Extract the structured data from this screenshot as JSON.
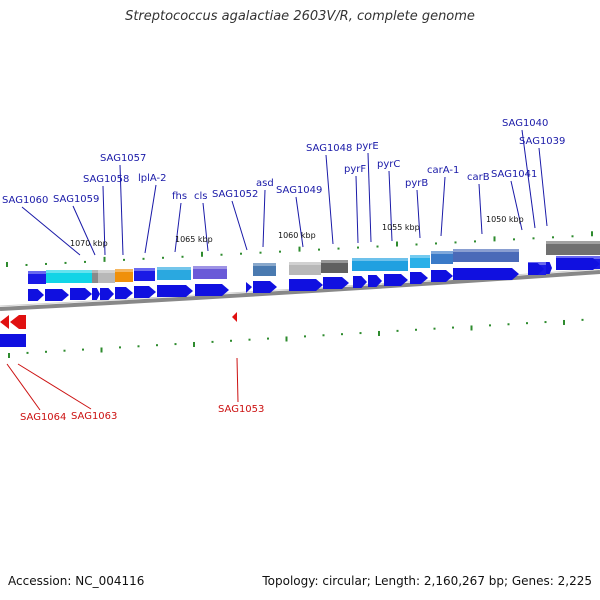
{
  "title": "Streptococcus agalactiae 2603V/R, complete genome",
  "footer": {
    "accession": "Accession: NC_004116",
    "summary": "Topology: circular; Length: 2,160,267 bp; Genes: 2,225"
  },
  "colors": {
    "forward_gene": "#1010e0",
    "reverse_gene": "#e01010",
    "tick": "#2e8b2e",
    "backbone": "#888888",
    "forward_label": "#1a1aa8",
    "reverse_label": "#cc1111"
  },
  "scale_labels": [
    "1070 kbp",
    "1065 kbp",
    "1060 kbp",
    "1055 kbp",
    "1050 kbp"
  ],
  "top_labels": [
    "SAG1060",
    "SAG1059",
    "SAG1058",
    "SAG1057",
    "lplA-2",
    "fhs",
    "cls",
    "SAG1052",
    "asd",
    "SAG1049",
    "SAG1048",
    "pyrF",
    "pyrE",
    "pyrC",
    "pyrB",
    "carA-1",
    "carB",
    "SAG1041",
    "SAG1040",
    "SAG1039"
  ],
  "bottom_labels": [
    "SAG1064",
    "SAG1063",
    "SAG1053"
  ]
}
